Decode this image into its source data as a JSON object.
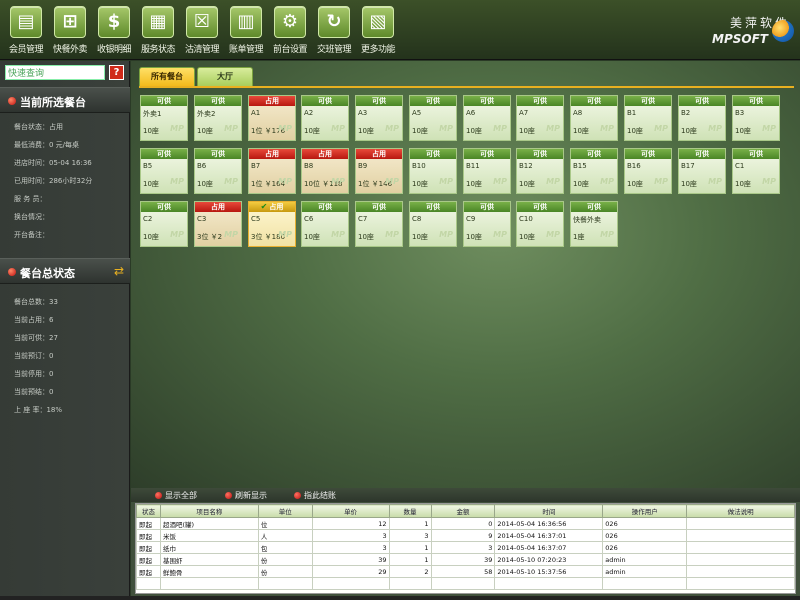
{
  "toolbar": {
    "items": [
      {
        "label": "会员管理",
        "icon": "member-card-icon",
        "glyph": "▤"
      },
      {
        "label": "快餐外卖",
        "icon": "shopping-cart-icon",
        "glyph": "⊞"
      },
      {
        "label": "收银明细",
        "icon": "dollar-icon",
        "glyph": "$"
      },
      {
        "label": "服务状态",
        "icon": "calculator-icon",
        "glyph": "▦"
      },
      {
        "label": "沽清管理",
        "icon": "cancel-box-icon",
        "glyph": "☒"
      },
      {
        "label": "账单管理",
        "icon": "bill-icon",
        "glyph": "▥"
      },
      {
        "label": "前台设置",
        "icon": "gears-icon",
        "glyph": "⚙"
      },
      {
        "label": "交班管理",
        "icon": "refresh-icon",
        "glyph": "↻"
      },
      {
        "label": "更多功能",
        "icon": "book-icon",
        "glyph": "▧"
      }
    ],
    "brand_cn": "美萍软件",
    "brand_en": "MPSOFT"
  },
  "sidebar": {
    "search_value": "快速查询",
    "help_glyph": "?",
    "current_panel": {
      "title": "当前所选餐台",
      "rows": [
        "餐台状态：占用",
        "最低消费：0 元/每桌",
        "进店时间：05-04 16:36",
        "已用时间：286小时32分",
        "服 务 员：",
        "换台情况：",
        "开台备注："
      ]
    },
    "status_panel": {
      "title": "餐台总状态",
      "rows": [
        "餐台总数：33",
        "当前占用：6",
        "当前可供：27",
        "当前预订：0",
        "当前停用：0",
        "当前预结：0",
        "上 座 率：18%"
      ]
    }
  },
  "main": {
    "tabs": [
      "所有餐台",
      "大厅"
    ],
    "watermark": "MP",
    "tables": [
      {
        "status": "可供",
        "name": "外卖1",
        "info": "10座"
      },
      {
        "status": "可供",
        "name": "外卖2",
        "info": "10座"
      },
      {
        "status": "占用",
        "name": "A1",
        "info": "1位 ￥176"
      },
      {
        "status": "可供",
        "name": "A2",
        "info": "10座"
      },
      {
        "status": "可供",
        "name": "A3",
        "info": "10座"
      },
      {
        "status": "可供",
        "name": "A5",
        "info": "10座"
      },
      {
        "status": "可供",
        "name": "A6",
        "info": "10座"
      },
      {
        "status": "可供",
        "name": "A7",
        "info": "10座"
      },
      {
        "status": "可供",
        "name": "A8",
        "info": "10座"
      },
      {
        "status": "可供",
        "name": "B1",
        "info": "10座"
      },
      {
        "status": "可供",
        "name": "B2",
        "info": "10座"
      },
      {
        "status": "可供",
        "name": "B3",
        "info": "10座"
      },
      {
        "status": "可供",
        "name": "B5",
        "info": "10座"
      },
      {
        "status": "可供",
        "name": "B6",
        "info": "10座"
      },
      {
        "status": "占用",
        "name": "B7",
        "info": "1位 ￥164"
      },
      {
        "status": "占用",
        "name": "B8",
        "info": "10位 ￥118"
      },
      {
        "status": "占用",
        "name": "B9",
        "info": "1位 ￥146"
      },
      {
        "status": "可供",
        "name": "B10",
        "info": "10座"
      },
      {
        "status": "可供",
        "name": "B11",
        "info": "10座"
      },
      {
        "status": "可供",
        "name": "B12",
        "info": "10座"
      },
      {
        "status": "可供",
        "name": "B15",
        "info": "10座"
      },
      {
        "status": "可供",
        "name": "B16",
        "info": "10座"
      },
      {
        "status": "可供",
        "name": "B17",
        "info": "10座"
      },
      {
        "status": "可供",
        "name": "C1",
        "info": "10座"
      },
      {
        "status": "可供",
        "name": "C2",
        "info": "10座"
      },
      {
        "status": "占用",
        "name": "C3",
        "info": "3位 ￥2"
      },
      {
        "status": "占用",
        "name": "C5",
        "info": "3位 ￥180",
        "selected": true,
        "check": "✔"
      },
      {
        "status": "可供",
        "name": "C6",
        "info": "10座"
      },
      {
        "status": "可供",
        "name": "C7",
        "info": "10座"
      },
      {
        "status": "可供",
        "name": "C8",
        "info": "10座"
      },
      {
        "status": "可供",
        "name": "C9",
        "info": "10座"
      },
      {
        "status": "可供",
        "name": "C10",
        "info": "10座"
      },
      {
        "status": "可供",
        "name": "快餐外卖",
        "info": "1座"
      }
    ]
  },
  "detail": {
    "buttons": [
      "显示全部",
      "刷新显示",
      "指此结账"
    ],
    "columns": [
      "状态",
      "项目名称",
      "单位",
      "单价",
      "数量",
      "金额",
      "时间",
      "操作用户",
      "做法说明"
    ],
    "rows": [
      [
        "即起",
        "超酒吧(罐)",
        "位",
        "12",
        "1",
        "0",
        "2014-05-04 16:36:56",
        "026",
        ""
      ],
      [
        "即起",
        "米饭",
        "人",
        "3",
        "3",
        "9",
        "2014-05-04 16:37:01",
        "026",
        ""
      ],
      [
        "即起",
        "纸巾",
        "包",
        "3",
        "1",
        "3",
        "2014-05-04 16:37:07",
        "026",
        ""
      ],
      [
        "即起",
        "基围虾",
        "份",
        "39",
        "1",
        "39",
        "2014-05-10 07:20:23",
        "admin",
        ""
      ],
      [
        "即起",
        "鲜鲍骨",
        "份",
        "29",
        "2",
        "58",
        "2014-05-10 15:37:56",
        "admin",
        ""
      ]
    ]
  }
}
